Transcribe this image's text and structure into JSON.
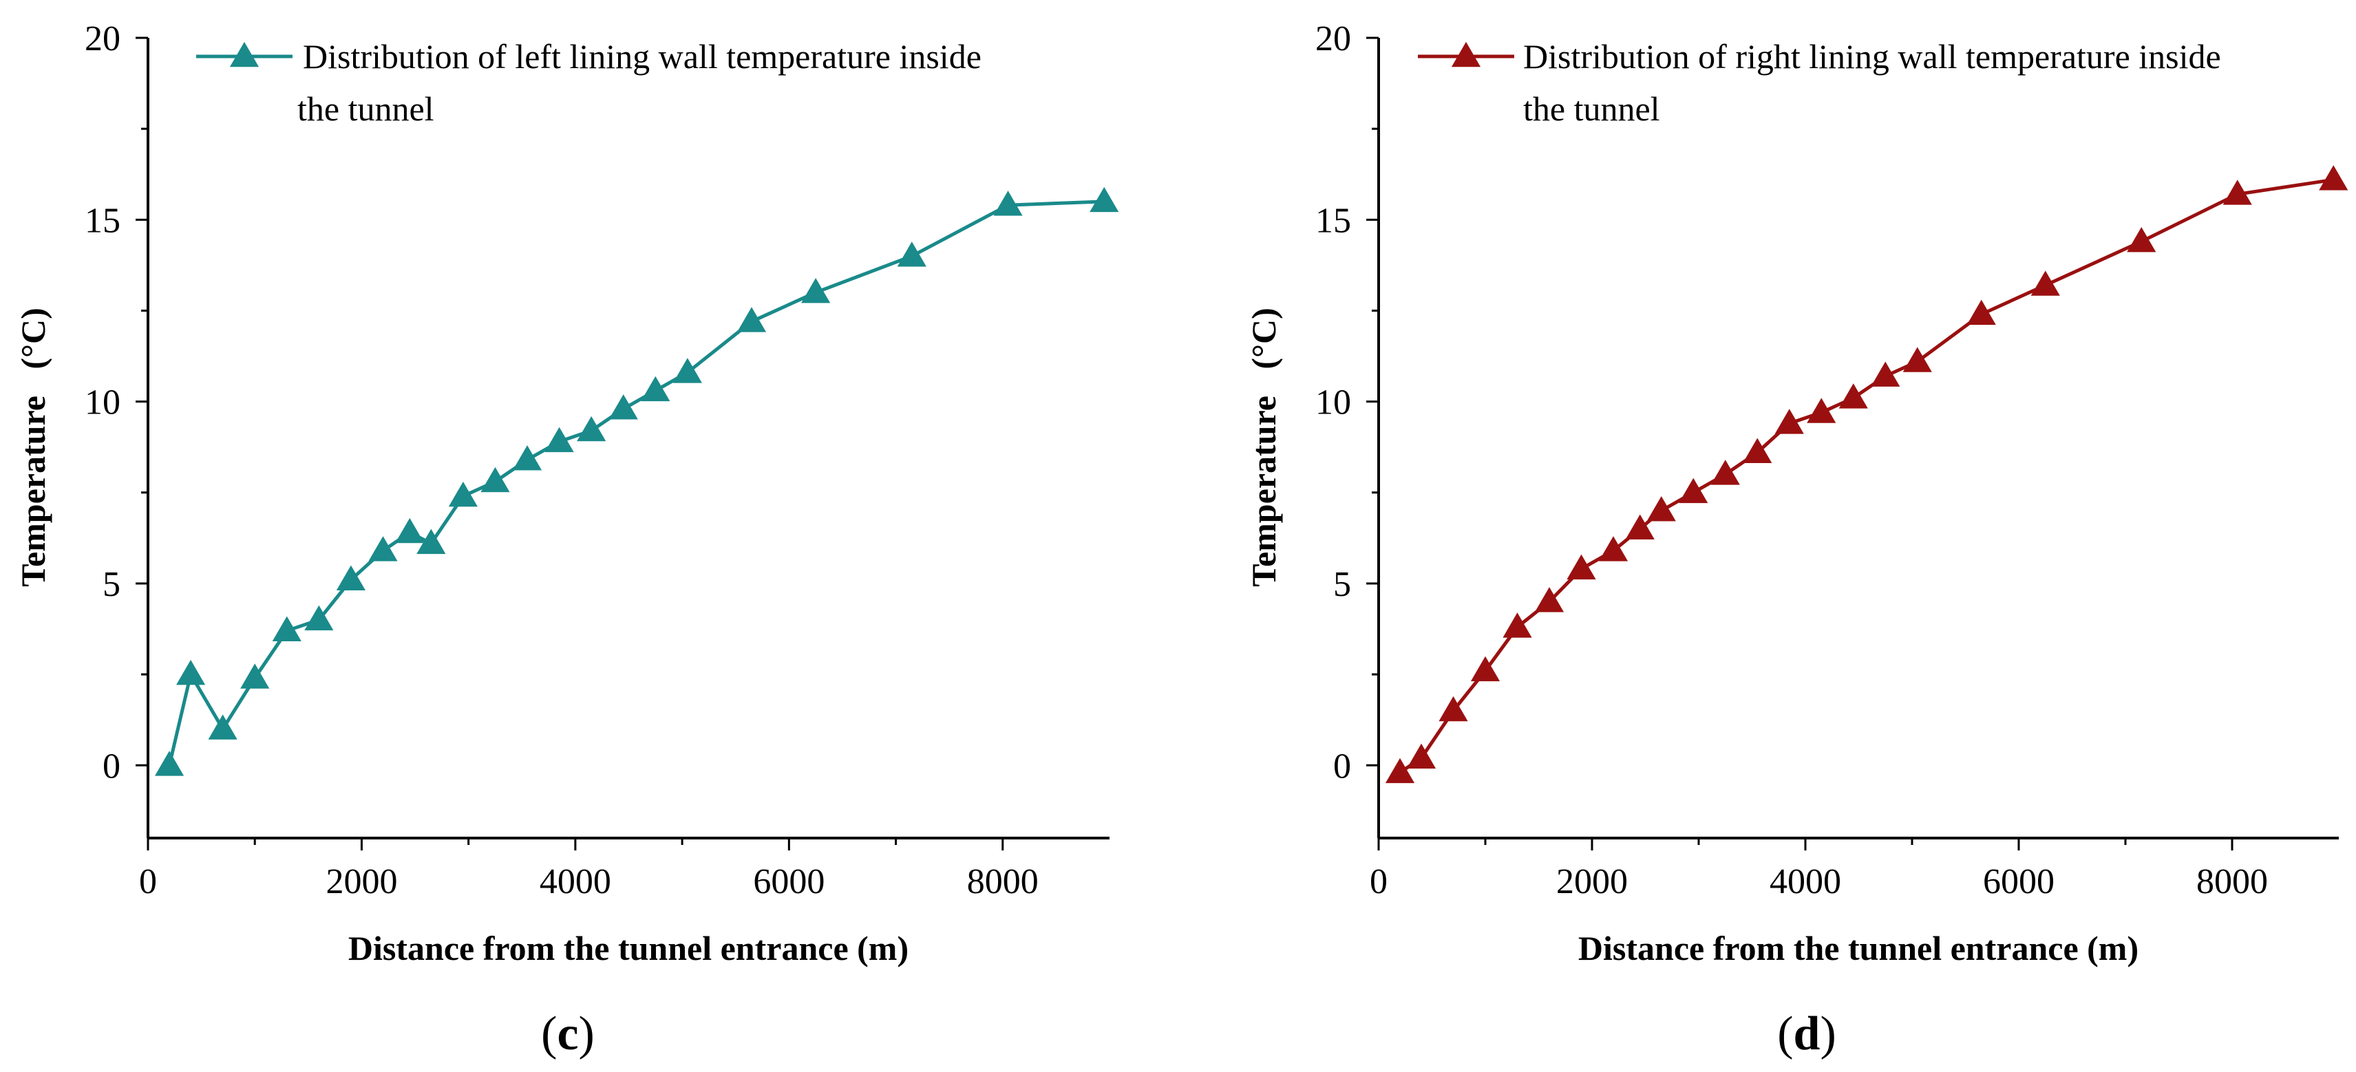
{
  "chart_data": [
    {
      "type": "line",
      "panel_label": "c",
      "title": "",
      "xlabel": "Distance from the tunnel entrance (m)",
      "ylabel": "Temperature",
      "ylabel_unit": "(°C)",
      "xlim": [
        0,
        9000
      ],
      "ylim": [
        -2,
        20
      ],
      "xticks": [
        0,
        2000,
        4000,
        6000,
        8000
      ],
      "xtick_labels": [
        "0",
        "2000",
        "4000",
        "6000",
        "8000"
      ],
      "yticks": [
        0,
        5,
        10,
        15,
        20
      ],
      "ytick_labels": [
        "0",
        "5",
        "10",
        "15",
        "20"
      ],
      "grid": false,
      "legend_position": "top",
      "series": [
        {
          "name": "Distribution of left lining wall temperature inside the tunnel",
          "legend_lines": [
            "Distribution of left lining wall temperature inside",
            "the tunnel"
          ],
          "color": "#1a8a8a",
          "marker": "triangle",
          "x": [
            200,
            400,
            700,
            1000,
            1300,
            1600,
            1900,
            2200,
            2450,
            2650,
            2950,
            3250,
            3550,
            3850,
            4150,
            4450,
            4750,
            5050,
            5650,
            6250,
            7150,
            8050,
            8950
          ],
          "values": [
            0.0,
            2.5,
            1.0,
            2.4,
            3.7,
            4.0,
            5.1,
            5.9,
            6.4,
            6.1,
            7.4,
            7.8,
            8.4,
            8.9,
            9.2,
            9.8,
            10.3,
            10.8,
            12.2,
            13.0,
            14.0,
            15.4,
            15.5
          ]
        }
      ]
    },
    {
      "type": "line",
      "panel_label": "d",
      "title": "",
      "xlabel": "Distance from the tunnel entrance (m)",
      "ylabel": "Temperature",
      "ylabel_unit": "(°C)",
      "xlim": [
        0,
        9000
      ],
      "ylim": [
        -2,
        20
      ],
      "xticks": [
        0,
        2000,
        4000,
        6000,
        8000
      ],
      "xtick_labels": [
        "0",
        "2000",
        "4000",
        "6000",
        "8000"
      ],
      "yticks": [
        0,
        5,
        10,
        15,
        20
      ],
      "ytick_labels": [
        "0",
        "5",
        "10",
        "15",
        "20"
      ],
      "grid": false,
      "legend_position": "top",
      "series": [
        {
          "name": "Distribution of right lining wall temperature inside the tunnel",
          "legend_lines": [
            "Distribution of right lining wall temperature inside",
            "the tunnel"
          ],
          "color": "#9a1010",
          "marker": "triangle",
          "x": [
            200,
            400,
            700,
            1000,
            1300,
            1600,
            1900,
            2200,
            2450,
            2650,
            2950,
            3250,
            3550,
            3850,
            4150,
            4450,
            4750,
            5050,
            5650,
            6250,
            7150,
            8050,
            8950
          ],
          "values": [
            -0.2,
            0.2,
            1.5,
            2.6,
            3.8,
            4.5,
            5.4,
            5.9,
            6.5,
            7.0,
            7.5,
            8.0,
            8.6,
            9.4,
            9.7,
            10.1,
            10.7,
            11.1,
            12.4,
            13.2,
            14.4,
            15.7,
            16.1
          ]
        }
      ]
    }
  ]
}
